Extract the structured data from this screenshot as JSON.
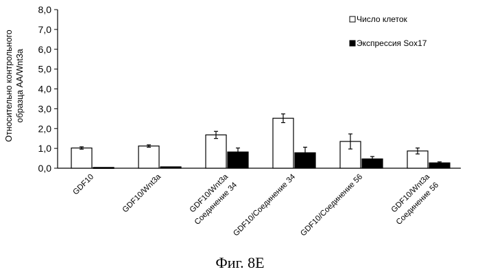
{
  "chart_data": {
    "type": "bar",
    "title": "",
    "ylabel": [
      "Относительно контрольного",
      "образца AA/Wnt3a"
    ],
    "ylim": [
      0,
      8
    ],
    "yticks": [
      "0,0",
      "1,0",
      "2,0",
      "3,0",
      "4,0",
      "5,0",
      "6,0",
      "7,0",
      "8,0"
    ],
    "grid": false,
    "legend_position": "top-right",
    "categories": [
      [
        "GDF10"
      ],
      [
        "GDF10/Wnt3a"
      ],
      [
        "GDF10/Wnt3a",
        "Соединение 34"
      ],
      [
        "GDF10/Соединение 34"
      ],
      [
        "GDF10/Соединение 56"
      ],
      [
        "GDF10/Wnt3a",
        "Соединение 56"
      ]
    ],
    "series": [
      {
        "name": "Число клеток",
        "color": "#ffffff",
        "values": [
          1.02,
          1.12,
          1.68,
          2.52,
          1.35,
          0.87
        ],
        "errors": [
          0.06,
          0.06,
          0.18,
          0.22,
          0.38,
          0.15
        ]
      },
      {
        "name": "Экспрессия Sox17",
        "color": "#000000",
        "values": [
          0.04,
          0.07,
          0.82,
          0.78,
          0.47,
          0.27
        ],
        "errors": [
          0.0,
          0.0,
          0.2,
          0.28,
          0.12,
          0.05
        ]
      }
    ]
  },
  "caption": "Фиг. 8E"
}
